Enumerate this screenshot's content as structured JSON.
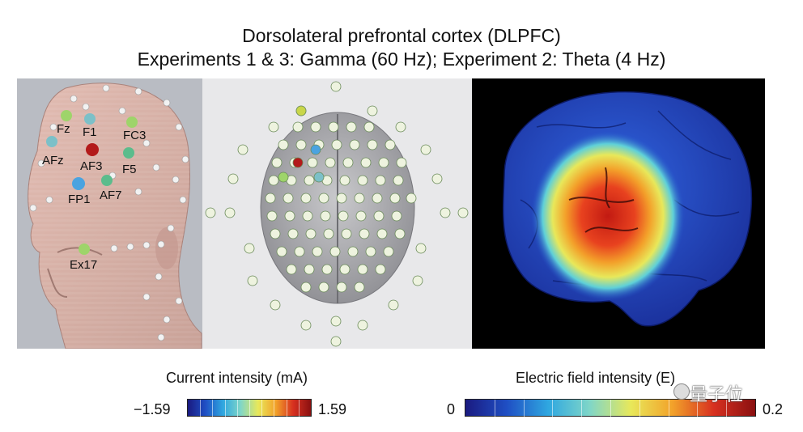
{
  "title": {
    "line1": "Dorsolateral prefrontal cortex (DLPFC)",
    "line2": "Experiments 1 & 3: Gamma (60 Hz); Experiment 2: Theta (4 Hz)"
  },
  "head_panel": {
    "electrode_labels": [
      "Fz",
      "F1",
      "FC3",
      "AFz",
      "AF3",
      "F5",
      "FP1",
      "AF7",
      "Ex17"
    ]
  },
  "electrode_map": {
    "highlighted": [
      "Cz",
      "AF3"
    ]
  },
  "colorbars": {
    "current": {
      "title": "Current intensity (mA)",
      "min": "−1.59",
      "max": "1.59"
    },
    "efield": {
      "title": "Electric field intensity (E)",
      "min": "0",
      "max": "0.2"
    }
  },
  "watermark": "量子位",
  "colors": {
    "red_electrode": "#b31a1a",
    "blue_electrode": "#4aa3e0",
    "green_electrode": "#9ed46a",
    "teal_electrode": "#7cc0c8"
  }
}
